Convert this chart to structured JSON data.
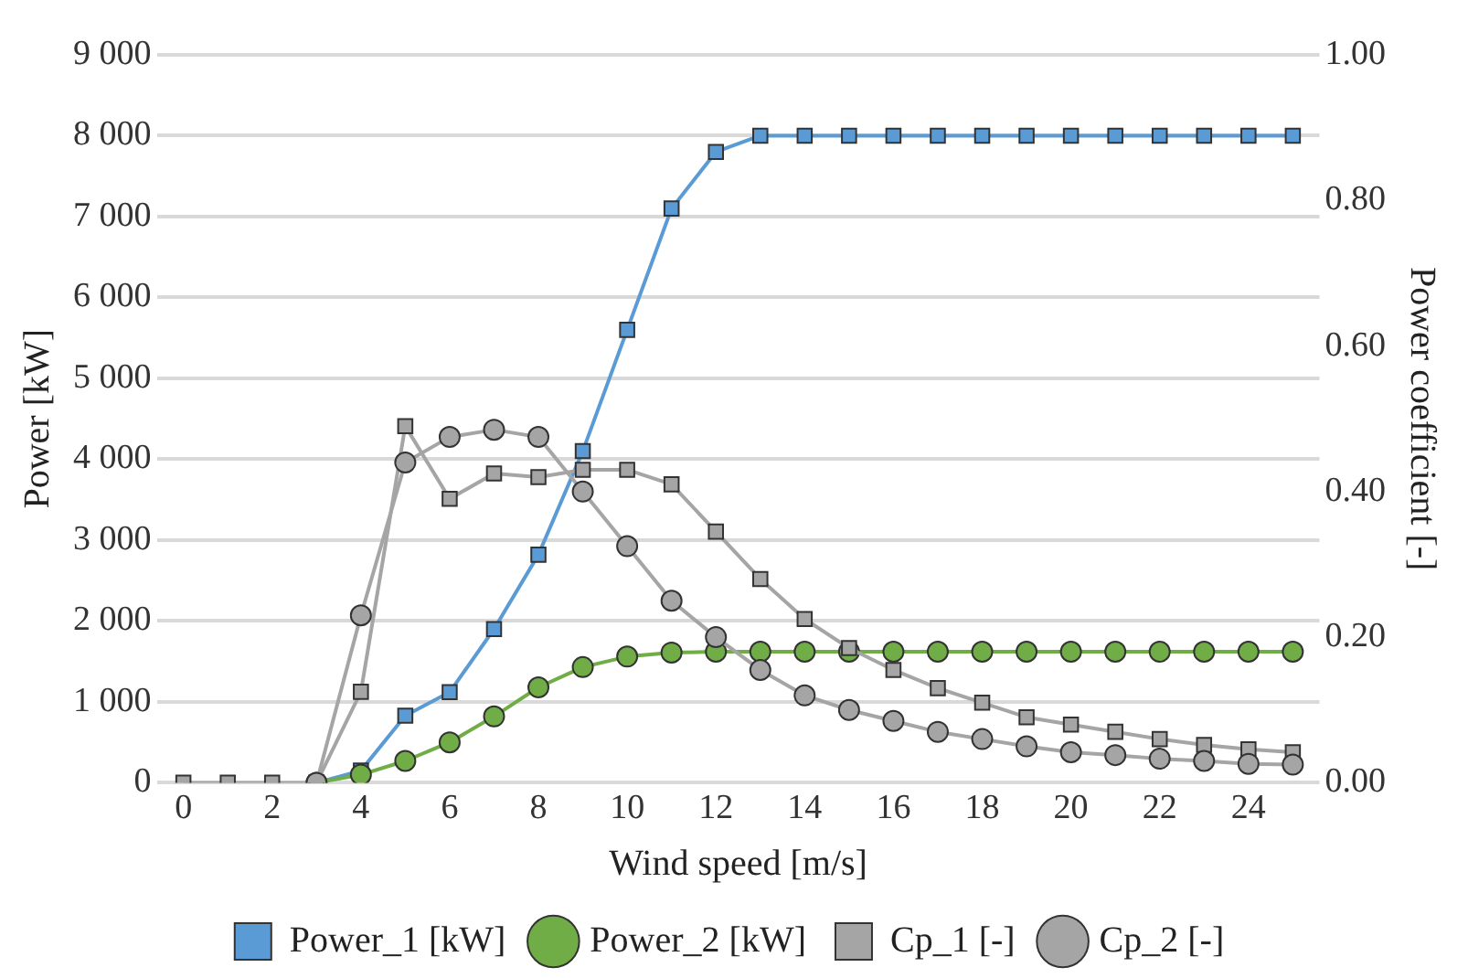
{
  "chart_data": {
    "type": "line",
    "xlabel": "Wind speed [m/s]",
    "ylabel": "Power [kW]",
    "y2label": "Power coefficient [-]",
    "x": [
      0,
      1,
      2,
      3,
      4,
      5,
      6,
      7,
      8,
      9,
      10,
      11,
      12,
      13,
      14,
      15,
      16,
      17,
      18,
      19,
      20,
      21,
      22,
      23,
      24,
      25
    ],
    "xlim": [
      -0.6,
      25.6
    ],
    "xticks": [
      0,
      2,
      4,
      6,
      8,
      10,
      12,
      14,
      16,
      18,
      20,
      22,
      24
    ],
    "ylim": [
      0,
      9000
    ],
    "yticks": [
      {
        "value": 0,
        "label": "0"
      },
      {
        "value": 1000,
        "label": "1 000"
      },
      {
        "value": 2000,
        "label": "2 000"
      },
      {
        "value": 3000,
        "label": "3 000"
      },
      {
        "value": 4000,
        "label": "4 000"
      },
      {
        "value": 5000,
        "label": "5 000"
      },
      {
        "value": 6000,
        "label": "6 000"
      },
      {
        "value": 7000,
        "label": "7 000"
      },
      {
        "value": 8000,
        "label": "8 000"
      },
      {
        "value": 9000,
        "label": "9 000"
      }
    ],
    "y2lim": [
      0,
      1
    ],
    "y2ticks": [
      {
        "value": 0,
        "label": "0.00"
      },
      {
        "value": 0.2,
        "label": "0.20"
      },
      {
        "value": 0.4,
        "label": "0.40"
      },
      {
        "value": 0.6,
        "label": "0.60"
      },
      {
        "value": 0.8,
        "label": "0.80"
      },
      {
        "value": 1,
        "label": "1.00"
      }
    ],
    "grid": "y",
    "legend": "bottom",
    "series": [
      {
        "name": "Power_1 [kW]",
        "color": "#5b9bd5",
        "marker": "square",
        "values": [
          null,
          null,
          null,
          0,
          150,
          830,
          1120,
          1900,
          2820,
          4100,
          5600,
          7100,
          7800,
          8000,
          8000,
          8000,
          8000,
          8000,
          8000,
          8000,
          8000,
          8000,
          8000,
          8000,
          8000,
          8000
        ]
      },
      {
        "name": "Power_2 [kW]",
        "color": "#70ad47",
        "marker": "circle",
        "values": [
          null,
          null,
          null,
          0,
          100,
          270,
          500,
          820,
          1180,
          1430,
          1560,
          1610,
          1620,
          1620,
          1620,
          1620,
          1620,
          1620,
          1620,
          1620,
          1620,
          1620,
          1620,
          1620,
          1620,
          1620
        ]
      },
      {
        "name": "Cp_1 [-]",
        "color": "#a5a5a5",
        "marker": "square",
        "axis": "y2",
        "values": [
          0,
          0,
          0,
          0,
          0.125,
          0.49,
          0.39,
          0.425,
          0.42,
          0.43,
          0.43,
          0.41,
          0.345,
          0.28,
          0.225,
          0.185,
          0.155,
          0.13,
          0.11,
          0.09,
          0.08,
          0.07,
          0.06,
          0.052,
          0.046,
          0.042
        ]
      },
      {
        "name": "Cp_2 [-]",
        "color": "#a5a5a5",
        "marker": "circle",
        "axis": "y2",
        "values": [
          null,
          null,
          null,
          0,
          0.23,
          0.44,
          0.475,
          0.485,
          0.475,
          0.4,
          0.325,
          0.25,
          0.2,
          0.155,
          0.12,
          0.1,
          0.085,
          0.07,
          0.06,
          0.05,
          0.042,
          0.038,
          0.033,
          0.03,
          0.026,
          0.025
        ]
      }
    ]
  }
}
